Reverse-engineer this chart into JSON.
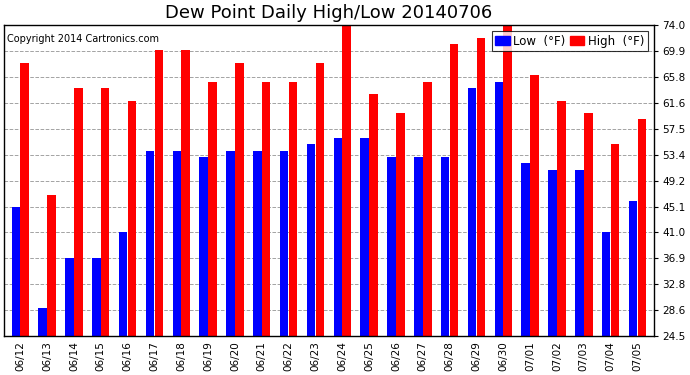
{
  "title": "Dew Point Daily High/Low 20140706",
  "copyright": "Copyright 2014 Cartronics.com",
  "dates": [
    "06/12",
    "06/13",
    "06/14",
    "06/15",
    "06/16",
    "06/17",
    "06/18",
    "06/19",
    "06/20",
    "06/21",
    "06/22",
    "06/23",
    "06/24",
    "06/25",
    "06/26",
    "06/27",
    "06/28",
    "06/29",
    "06/30",
    "07/01",
    "07/02",
    "07/03",
    "07/04",
    "07/05"
  ],
  "low_vals": [
    45,
    29,
    37,
    37,
    41,
    54,
    54,
    53,
    54,
    54,
    54,
    55,
    56,
    56,
    53,
    53,
    53,
    64,
    65,
    52,
    51,
    51,
    41,
    46
  ],
  "high_vals": [
    68,
    47,
    64,
    64,
    62,
    70,
    70,
    65,
    68,
    65,
    65,
    68,
    74,
    63,
    60,
    65,
    71,
    72,
    74,
    66,
    62,
    60,
    55,
    59
  ],
  "low_color": "#0000ff",
  "high_color": "#ff0000",
  "bg_color": "#ffffff",
  "grid_color": "#999999",
  "yticks": [
    24.5,
    28.6,
    32.8,
    36.9,
    41.0,
    45.1,
    49.2,
    53.4,
    57.5,
    61.6,
    65.8,
    69.9,
    74.0
  ],
  "ylim": [
    24.5,
    74.0
  ],
  "ybase": 24.5,
  "title_fontsize": 13,
  "tick_fontsize": 7.5,
  "legend_fontsize": 8.5
}
